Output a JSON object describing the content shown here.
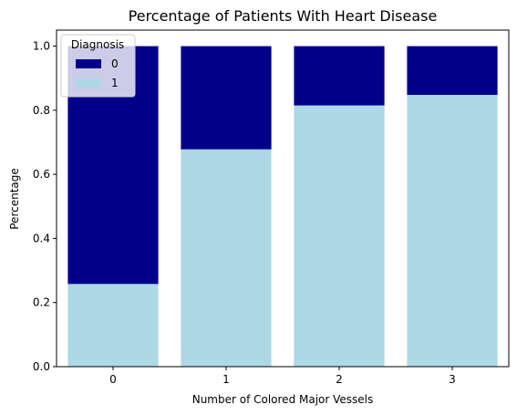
{
  "chart_data": {
    "type": "bar",
    "stacked": true,
    "title": "Percentage of Patients With Heart Disease",
    "xlabel": "Number of Colored Major Vessels",
    "ylabel": "Percentage",
    "categories": [
      "0",
      "1",
      "2",
      "3"
    ],
    "ylim": [
      0,
      1.05
    ],
    "yticks": [
      "0.0",
      "0.2",
      "0.4",
      "0.6",
      "0.8",
      "1.0"
    ],
    "series": [
      {
        "name": "1",
        "values": [
          0.258,
          0.678,
          0.815,
          0.848
        ],
        "color": "#add8e6"
      },
      {
        "name": "0",
        "values": [
          0.742,
          0.322,
          0.185,
          0.152
        ],
        "color": "#00008b"
      }
    ],
    "legend": {
      "title": "Diagnosis",
      "placement": "top-left",
      "entries": [
        {
          "label": "0",
          "color": "#00008b"
        },
        {
          "label": "1",
          "color": "#add8e6"
        }
      ]
    },
    "grid": false
  }
}
